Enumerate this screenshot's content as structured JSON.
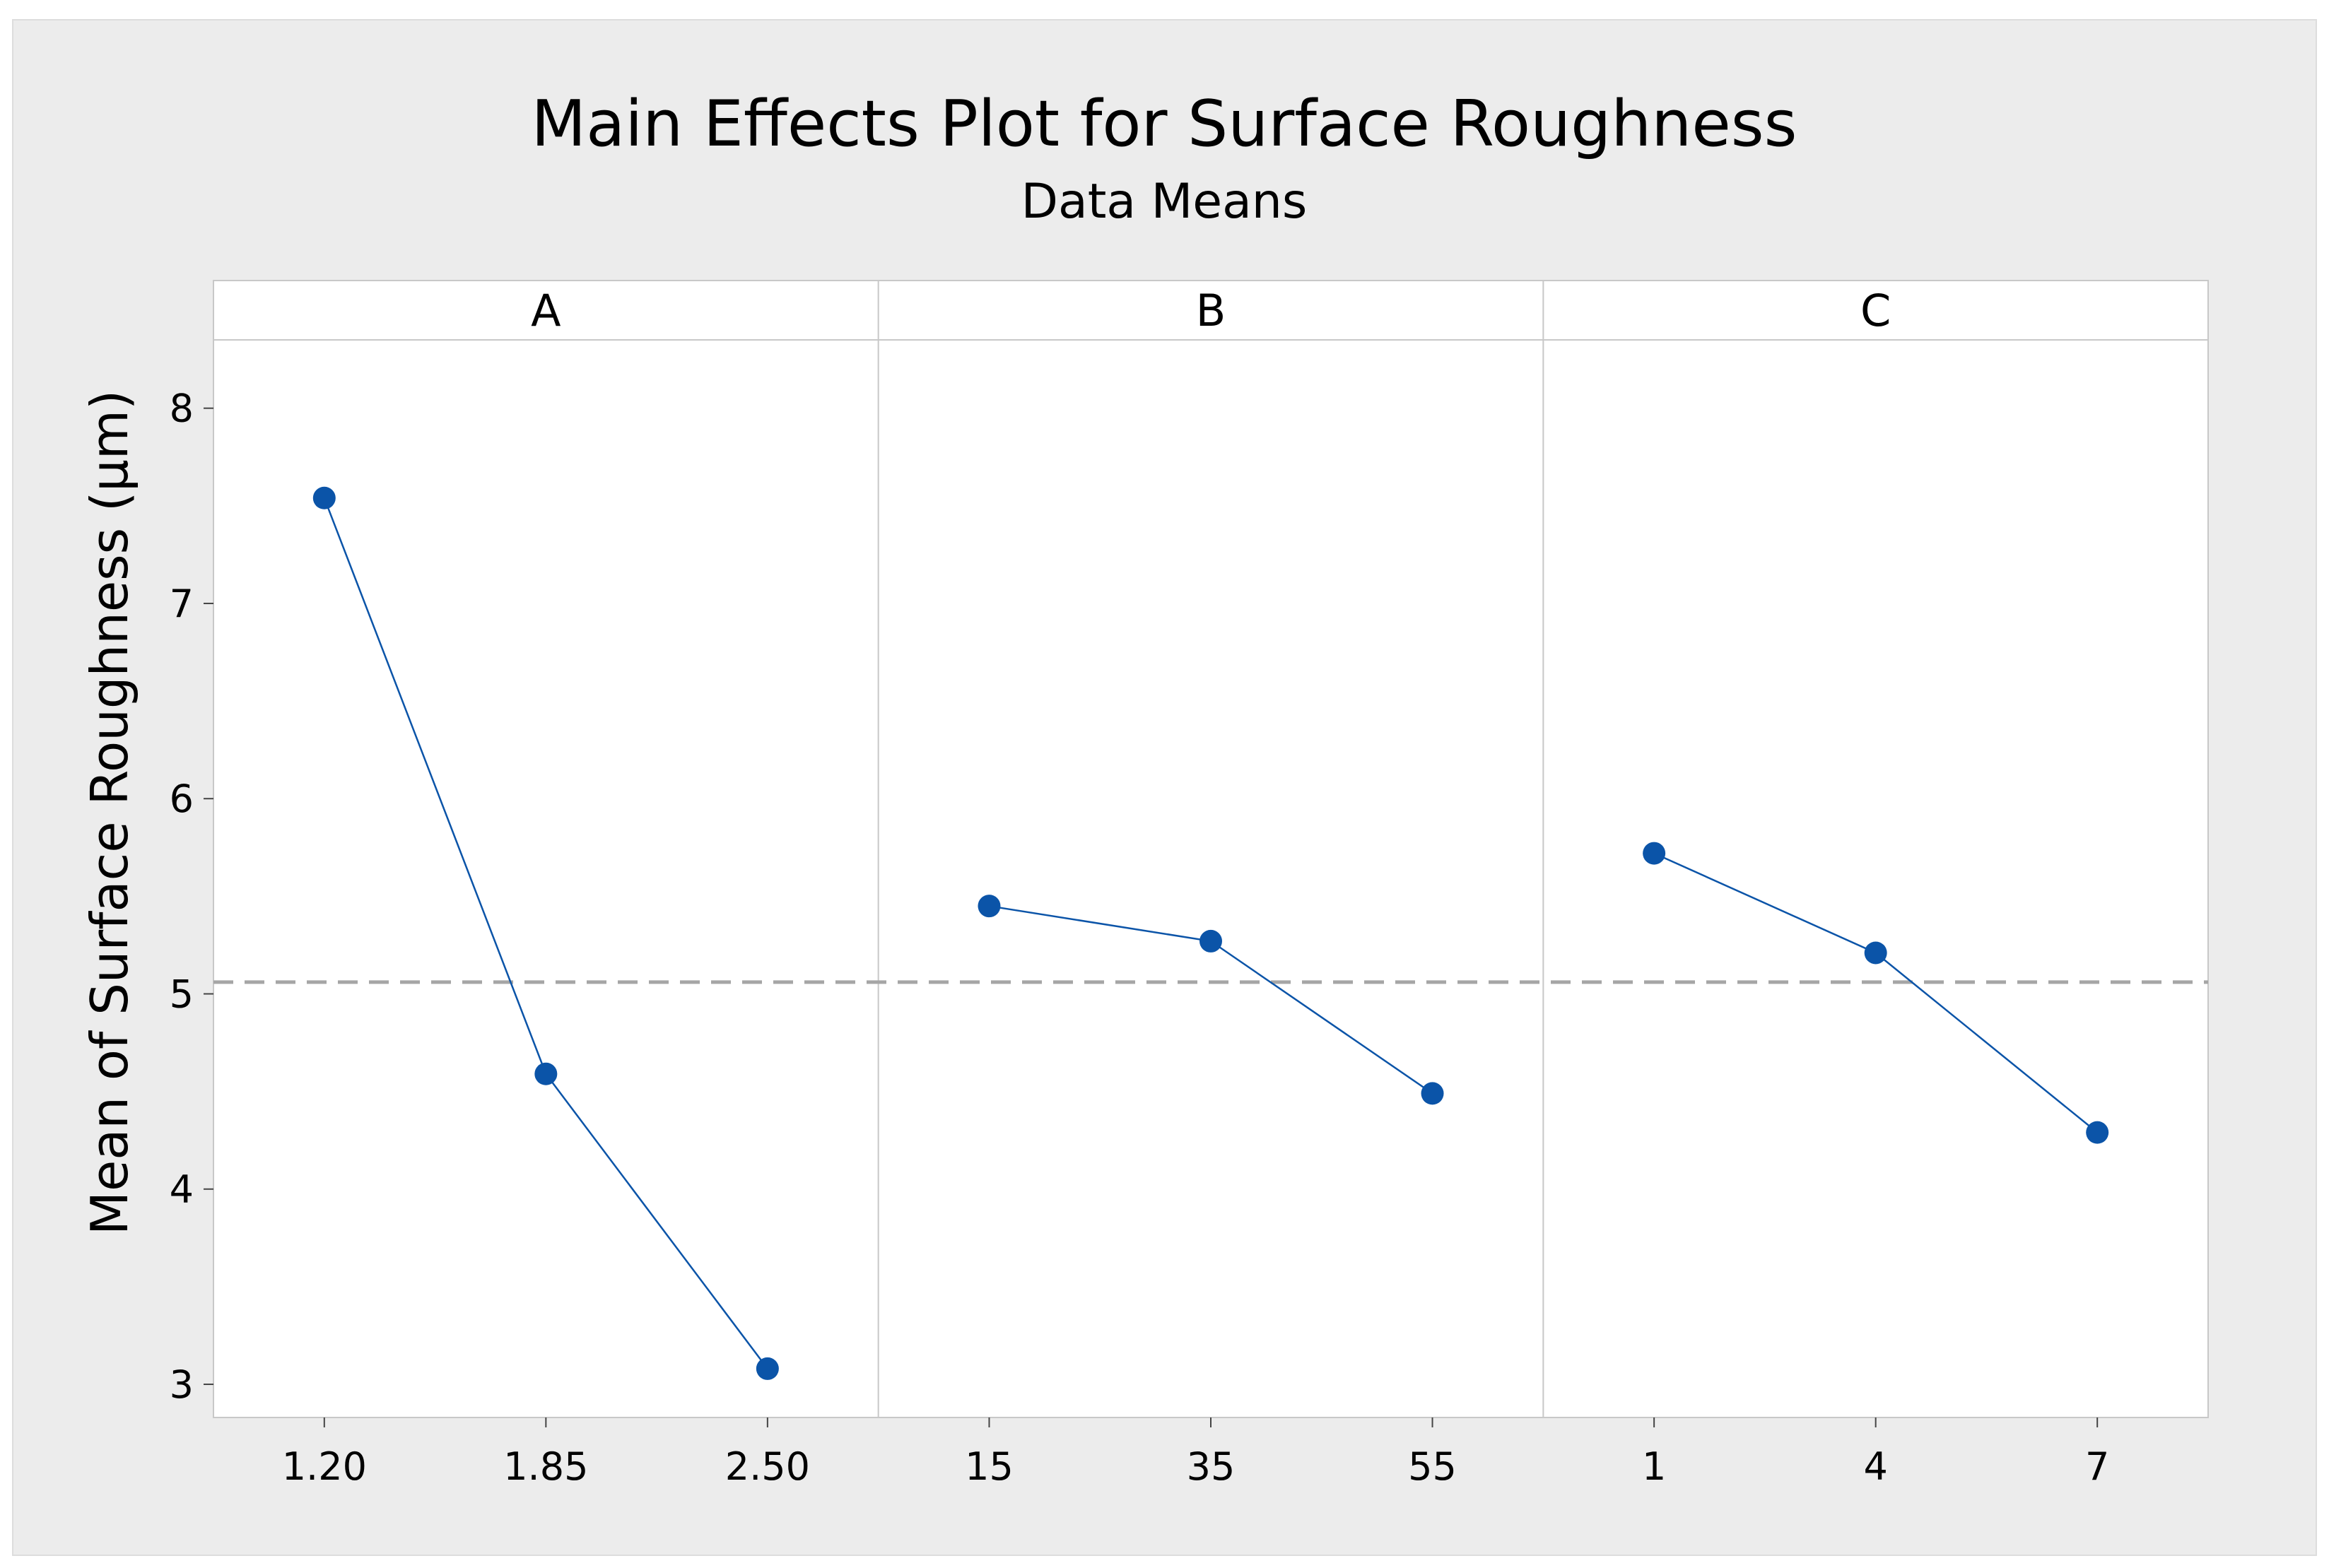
{
  "chart_data": {
    "type": "line",
    "title": "Main Effects Plot for Surface Roughness",
    "subtitle": "Data Means",
    "ylabel": "Mean of Surface Roughness (µm)",
    "ylim": [
      2.83,
      8.35
    ],
    "yticks": [
      "3",
      "4",
      "5",
      "6",
      "7",
      "8"
    ],
    "reference_line": 5.06,
    "colors": {
      "outer_background": "#ececec",
      "plot_background": "#ffffff",
      "series": "#0b54a8",
      "reference": "#a6a6a6",
      "border": "#c8c8c8"
    },
    "panels": [
      {
        "factor": "A",
        "levels": [
          "1.20",
          "1.85",
          "2.50"
        ],
        "values": [
          7.54,
          4.59,
          3.08
        ]
      },
      {
        "factor": "B",
        "levels": [
          "15",
          "35",
          "55"
        ],
        "values": [
          5.45,
          5.27,
          4.49
        ]
      },
      {
        "factor": "C",
        "levels": [
          "1",
          "4",
          "7"
        ],
        "values": [
          5.72,
          5.21,
          4.29
        ]
      }
    ]
  }
}
